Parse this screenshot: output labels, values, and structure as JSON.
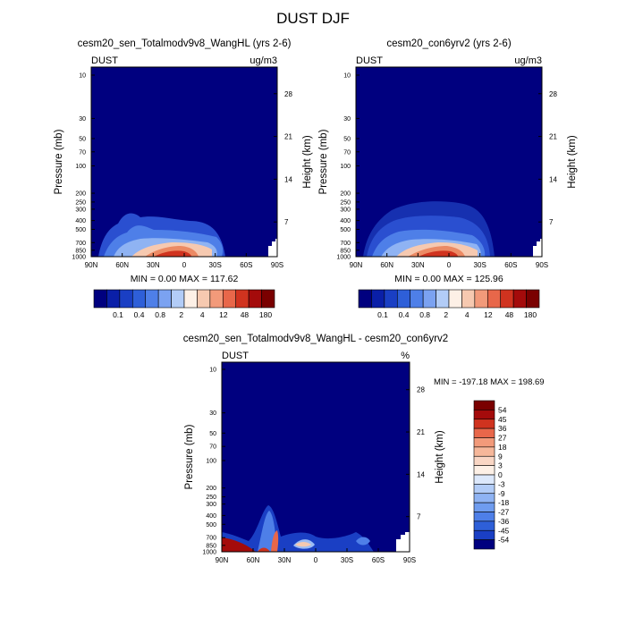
{
  "title": "DUST DJF",
  "left_label": "DUST",
  "y_label": "Pressure (mb)",
  "y2_label": "Height (km)",
  "pressure_ticks": [
    "10",
    "30",
    "50",
    "70",
    "100",
    "200",
    "250",
    "300",
    "400",
    "500",
    "700",
    "850",
    "1000"
  ],
  "height_ticks": [
    "28",
    "21",
    "14",
    "7"
  ],
  "lat_ticks": [
    "90N",
    "60N",
    "30N",
    "0",
    "30S",
    "60S",
    "90S"
  ],
  "abs_colorbar_labels": [
    "0.1",
    "0.4",
    "0.8",
    "2",
    "4",
    "12",
    "48",
    "180"
  ],
  "panels": [
    {
      "title": "cesm20_sen_Totalmodv9v8_WangHL (yrs 2-6)",
      "units": "ug/m3",
      "stats": "MIN =   0.00  MAX = 117.62"
    },
    {
      "title": "cesm20_con6yrv2 (yrs 2-6)",
      "units": "ug/m3",
      "stats": "MIN =   0.00  MAX = 125.96"
    },
    {
      "title": "cesm20_sen_Totalmodv9v8_WangHL - cesm20_con6yrv2",
      "units": "%",
      "stats": "MIN = -197.18  MAX = 198.69",
      "colorbar_labels": [
        "54",
        "45",
        "36",
        "27",
        "18",
        "9",
        "3",
        "0",
        "-3",
        "-9",
        "-18",
        "-27",
        "-36",
        "-45",
        "-54"
      ]
    }
  ]
}
